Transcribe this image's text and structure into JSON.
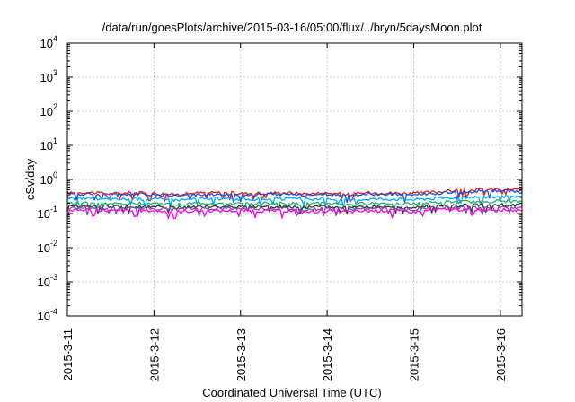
{
  "chart_data": {
    "type": "line",
    "title": "/data/run/goesPlots/archive/2015-03-16/05:00/flux/../bryn/5daysMoon.plot",
    "xlabel": "Coordinated Universal Time (UTC)",
    "ylabel": "cSv/day",
    "yscale": "log",
    "ylim": [
      0.0001,
      10000
    ],
    "xlim": [
      "2015-03-11",
      "2015-03-16 06:00"
    ],
    "grid": true,
    "legend": "none",
    "xticks": [
      "2015-3-11",
      "2015-3-12",
      "2015-3-13",
      "2015-3-14",
      "2015-3-15",
      "2015-3-16"
    ],
    "yticks": [
      {
        "value": 0.0001,
        "base": "10",
        "exp": "-4"
      },
      {
        "value": 0.001,
        "base": "10",
        "exp": "-3"
      },
      {
        "value": 0.01,
        "base": "10",
        "exp": "-2"
      },
      {
        "value": 0.1,
        "base": "10",
        "exp": "-1"
      },
      {
        "value": 1,
        "base": "10",
        "exp": "0"
      },
      {
        "value": 10,
        "base": "10",
        "exp": "1"
      },
      {
        "value": 100,
        "base": "10",
        "exp": "2"
      },
      {
        "value": 1000,
        "base": "10",
        "exp": "3"
      },
      {
        "value": 10000,
        "base": "10",
        "exp": "4"
      }
    ],
    "x": [
      "2015-03-11 00:00",
      "2015-03-11 06:00",
      "2015-03-11 12:00",
      "2015-03-11 18:00",
      "2015-03-12 00:00",
      "2015-03-12 06:00",
      "2015-03-12 12:00",
      "2015-03-12 18:00",
      "2015-03-13 00:00",
      "2015-03-13 06:00",
      "2015-03-13 12:00",
      "2015-03-13 18:00",
      "2015-03-14 00:00",
      "2015-03-14 06:00",
      "2015-03-14 12:00",
      "2015-03-14 18:00",
      "2015-03-15 00:00",
      "2015-03-15 06:00",
      "2015-03-15 12:00",
      "2015-03-15 18:00",
      "2015-03-16 00:00",
      "2015-03-16 06:00"
    ],
    "series": [
      {
        "color": "#e41a1c",
        "values": [
          0.4,
          0.42,
          0.38,
          0.41,
          0.39,
          0.36,
          0.4,
          0.41,
          0.39,
          0.4,
          0.41,
          0.38,
          0.4,
          0.37,
          0.41,
          0.4,
          0.39,
          0.43,
          0.48,
          0.5,
          0.52,
          0.5
        ]
      },
      {
        "color": "#1f4fd6",
        "values": [
          0.36,
          0.38,
          0.35,
          0.37,
          0.36,
          0.33,
          0.36,
          0.37,
          0.35,
          0.36,
          0.37,
          0.35,
          0.36,
          0.34,
          0.37,
          0.36,
          0.35,
          0.39,
          0.43,
          0.45,
          0.47,
          0.45
        ]
      },
      {
        "color": "#00a8ff",
        "values": [
          0.27,
          0.28,
          0.26,
          0.27,
          0.27,
          0.25,
          0.27,
          0.28,
          0.26,
          0.27,
          0.27,
          0.26,
          0.27,
          0.25,
          0.27,
          0.27,
          0.26,
          0.28,
          0.3,
          0.31,
          0.31,
          0.3
        ]
      },
      {
        "color": "#20b070",
        "values": [
          0.2,
          0.21,
          0.19,
          0.2,
          0.2,
          0.18,
          0.2,
          0.2,
          0.19,
          0.2,
          0.2,
          0.19,
          0.2,
          0.18,
          0.2,
          0.2,
          0.19,
          0.21,
          0.22,
          0.22,
          0.23,
          0.22
        ]
      },
      {
        "color": "#333333",
        "values": [
          0.16,
          0.17,
          0.16,
          0.16,
          0.16,
          0.15,
          0.16,
          0.16,
          0.16,
          0.16,
          0.16,
          0.15,
          0.16,
          0.15,
          0.16,
          0.16,
          0.15,
          0.17,
          0.17,
          0.18,
          0.18,
          0.17
        ]
      },
      {
        "color": "#7a4fa0",
        "values": [
          0.14,
          0.15,
          0.14,
          0.14,
          0.14,
          0.13,
          0.14,
          0.14,
          0.14,
          0.14,
          0.14,
          0.13,
          0.14,
          0.13,
          0.14,
          0.14,
          0.13,
          0.15,
          0.15,
          0.15,
          0.16,
          0.15
        ]
      },
      {
        "color": "#ff00ff",
        "values": [
          0.12,
          0.13,
          0.12,
          0.12,
          0.12,
          0.11,
          0.12,
          0.12,
          0.12,
          0.12,
          0.12,
          0.11,
          0.12,
          0.11,
          0.12,
          0.12,
          0.11,
          0.13,
          0.13,
          0.13,
          0.13,
          0.12
        ]
      }
    ]
  }
}
